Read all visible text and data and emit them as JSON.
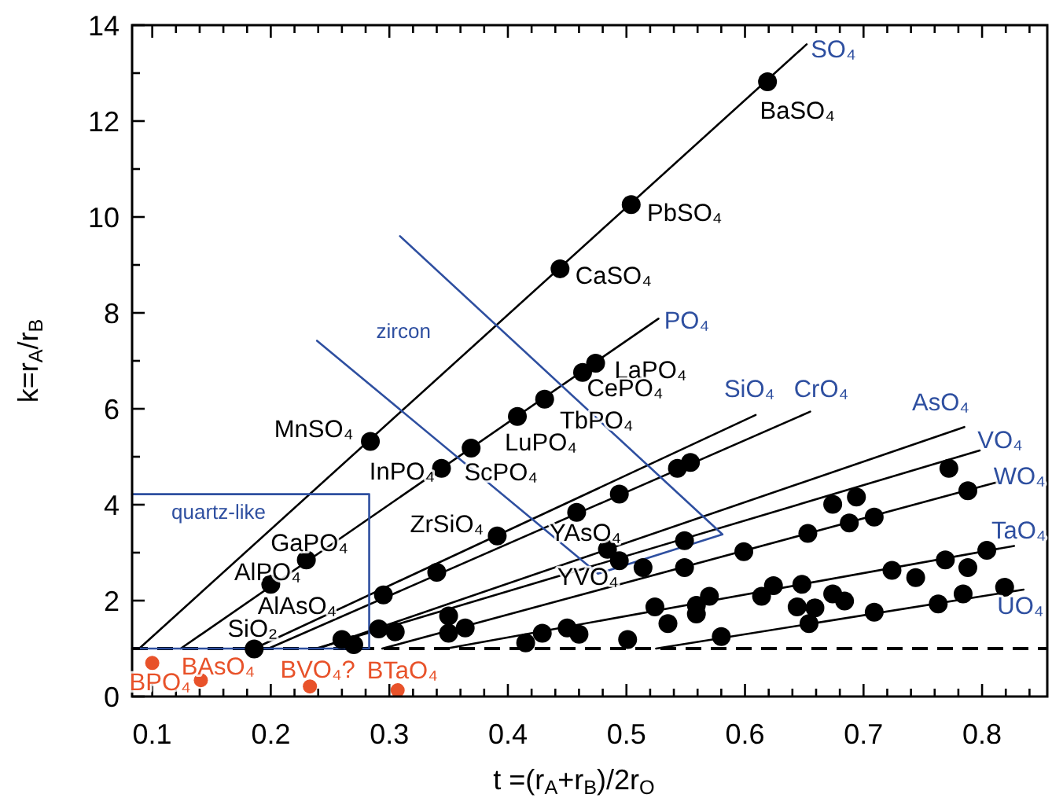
{
  "chart_data": {
    "type": "scatter",
    "xlabel": "t =(r$_{A}$+r$_{B}$)/2r$_{O}$",
    "ylabel": "k=r$_{A}$/r$_{B}$",
    "xlim": [
      0.083,
      0.855
    ],
    "ylim": [
      0,
      14
    ],
    "xticks": [
      0.1,
      {
        "value": 0.12,
        "label": null
      },
      {
        "value": 0.14,
        "label": null
      },
      {
        "value": 0.16,
        "label": null
      },
      {
        "value": 0.18,
        "label": null
      },
      0.2,
      {
        "value": 0.22,
        "label": null
      },
      {
        "value": 0.24,
        "label": null
      },
      {
        "value": 0.26,
        "label": null
      },
      {
        "value": 0.28,
        "label": null
      },
      0.3,
      {
        "value": 0.32,
        "label": null
      },
      {
        "value": 0.34,
        "label": null
      },
      {
        "value": 0.36,
        "label": null
      },
      {
        "value": 0.38,
        "label": null
      },
      0.4,
      {
        "value": 0.42,
        "label": null
      },
      {
        "value": 0.44,
        "label": null
      },
      {
        "value": 0.46,
        "label": null
      },
      {
        "value": 0.48,
        "label": null
      },
      0.5,
      {
        "value": 0.52,
        "label": null
      },
      {
        "value": 0.54,
        "label": null
      },
      {
        "value": 0.56,
        "label": null
      },
      {
        "value": 0.58,
        "label": null
      },
      0.6,
      {
        "value": 0.62,
        "label": null
      },
      {
        "value": 0.64,
        "label": null
      },
      {
        "value": 0.66,
        "label": null
      },
      {
        "value": 0.68,
        "label": null
      },
      0.7,
      {
        "value": 0.72,
        "label": null
      },
      {
        "value": 0.74,
        "label": null
      },
      {
        "value": 0.76,
        "label": null
      },
      {
        "value": 0.78,
        "label": null
      },
      0.8,
      {
        "value": 0.82,
        "label": null
      },
      {
        "value": 0.84,
        "label": null
      }
    ],
    "yticks": [
      0,
      {
        "value": 1,
        "label": null
      },
      2,
      {
        "value": 3,
        "label": null
      },
      4,
      {
        "value": 5,
        "label": null
      },
      6,
      {
        "value": 7,
        "label": null
      },
      8,
      {
        "value": 9,
        "label": null
      },
      10,
      {
        "value": 11,
        "label": null
      },
      12,
      {
        "value": 13,
        "label": null
      },
      14
    ],
    "grid": false,
    "marker": "circle",
    "ref_lines": [
      {
        "axis": "y",
        "value": 1,
        "color": "#000000",
        "line_style": "dashed"
      }
    ],
    "series": [
      {
        "type": "line",
        "marker": "none",
        "color": "#000000",
        "x": [
          0.089,
          0.652
        ],
        "values": [
          1,
          13.6
        ]
      },
      {
        "type": "line",
        "marker": "none",
        "color": "#000000",
        "x": [
          0.124,
          0.527
        ],
        "values": [
          1,
          7.88
        ]
      },
      {
        "type": "line",
        "marker": "none",
        "color": "#000000",
        "x": [
          0.186,
          0.609
        ],
        "values": [
          1,
          5.87
        ]
      },
      {
        "type": "line",
        "marker": "none",
        "color": "#000000",
        "x": [
          0.198,
          0.655
        ],
        "values": [
          1,
          5.94
        ]
      },
      {
        "type": "line",
        "marker": "none",
        "color": "#000000",
        "x": [
          0.24,
          0.785
        ],
        "values": [
          1,
          5.62
        ]
      },
      {
        "type": "line",
        "marker": "none",
        "color": "#000000",
        "x": [
          0.238,
          0.798
        ],
        "values": [
          1,
          5.13
        ]
      },
      {
        "type": "line",
        "marker": "none",
        "color": "#000000",
        "x": [
          0.294,
          0.813
        ],
        "values": [
          1,
          4.47
        ]
      },
      {
        "type": "line",
        "marker": "none",
        "color": "#000000",
        "x": [
          0.348,
          0.827
        ],
        "values": [
          1,
          3.14
        ]
      },
      {
        "type": "line",
        "marker": "none",
        "color": "#000000",
        "x": [
          0.525,
          0.835
        ],
        "values": [
          1,
          2.23
        ]
      },
      {
        "type": "line",
        "marker": "none",
        "color": "#2e4fa0",
        "x": [
          0.083,
          0.283,
          0.283,
          0.083
        ],
        "values": [
          4.22,
          4.22,
          1,
          1
        ]
      },
      {
        "type": "line",
        "marker": "none",
        "color": "#2e4fa0",
        "x": [
          0.239,
          0.476,
          0.581,
          0.309
        ],
        "values": [
          7.42,
          2.56,
          3.38,
          9.6
        ]
      },
      {
        "color": "#000000",
        "x": [
          0.284,
          0.444,
          0.504,
          0.619,
          0.2,
          0.23,
          0.344,
          0.369,
          0.408,
          0.431,
          0.463,
          0.474,
          0.186,
          0.26,
          0.27,
          0.291,
          0.305,
          0.295,
          0.34,
          0.35,
          0.35,
          0.364,
          0.391,
          0.415,
          0.429,
          0.45,
          0.46,
          0.458,
          0.484,
          0.494,
          0.494,
          0.514,
          0.501,
          0.524,
          0.535,
          0.543,
          0.554,
          0.549,
          0.549,
          0.559,
          0.559,
          0.57,
          0.58,
          0.599,
          0.614,
          0.624,
          0.644,
          0.648,
          0.653,
          0.659,
          0.654,
          0.674,
          0.674,
          0.684,
          0.688,
          0.694,
          0.709,
          0.709,
          0.724,
          0.744,
          0.763,
          0.769,
          0.772,
          0.784,
          0.788,
          0.788,
          0.804,
          0.819
        ],
        "values": [
          5.32,
          8.92,
          10.26,
          12.82,
          2.34,
          2.85,
          4.76,
          5.18,
          5.84,
          6.2,
          6.76,
          6.95,
          0.99,
          1.19,
          1.08,
          1.41,
          1.35,
          2.12,
          2.59,
          1.68,
          1.32,
          1.43,
          3.35,
          1.12,
          1.32,
          1.43,
          1.3,
          3.84,
          3.07,
          4.22,
          2.83,
          2.69,
          1.19,
          1.87,
          1.52,
          4.76,
          4.88,
          3.25,
          2.69,
          1.9,
          1.72,
          2.09,
          1.25,
          3.02,
          2.09,
          2.31,
          1.87,
          2.34,
          3.4,
          1.85,
          1.52,
          4.01,
          2.14,
          1.99,
          3.62,
          4.16,
          3.74,
          1.76,
          2.63,
          2.48,
          1.93,
          2.85,
          4.76,
          2.14,
          2.69,
          4.29,
          3.05,
          2.28
        ]
      },
      {
        "color": "#e8522a",
        "x": [
          0.1,
          0.141,
          0.233,
          0.307
        ],
        "values": [
          0.7,
          0.34,
          0.21,
          0.13
        ]
      }
    ],
    "annotations": [
      {
        "text": "SO₄",
        "x": 0.652,
        "y": 13.6
      },
      {
        "text": "PO₄",
        "x": 0.527,
        "y": 7.88
      },
      {
        "text": "SiO₄",
        "x": 0.609,
        "y": 5.87
      },
      {
        "text": "CrO₄",
        "x": 0.655,
        "y": 5.94
      },
      {
        "text": "AsO₄",
        "x": 0.785,
        "y": 5.62
      },
      {
        "text": "VO₄",
        "x": 0.798,
        "y": 5.13
      },
      {
        "text": "WO₄",
        "x": 0.813,
        "y": 4.47
      },
      {
        "text": "TaO₄",
        "x": 0.827,
        "y": 3.14
      },
      {
        "text": "UO₄",
        "x": 0.835,
        "y": 2.23
      },
      {
        "text": "BaSO₄",
        "x": 0.619,
        "y": 12.82
      },
      {
        "text": "PbSO₄",
        "x": 0.504,
        "y": 10.26
      },
      {
        "text": "CaSO₄",
        "x": 0.444,
        "y": 8.92
      },
      {
        "text": "LaPO₄",
        "x": 0.474,
        "y": 6.95
      },
      {
        "text": "CePO₄",
        "x": 0.463,
        "y": 6.76
      },
      {
        "text": "TbPO₄",
        "x": 0.431,
        "y": 6.2
      },
      {
        "text": "LuPO₄",
        "x": 0.408,
        "y": 5.84
      },
      {
        "text": "MnSO₄",
        "x": 0.284,
        "y": 5.32
      },
      {
        "text": "InPO₄",
        "x": 0.344,
        "y": 4.76
      },
      {
        "text": "ScPO₄",
        "x": 0.369,
        "y": 5.18
      },
      {
        "text": "ZrSiO₄",
        "x": 0.391,
        "y": 3.35
      },
      {
        "text": "GaPO₄",
        "x": 0.23,
        "y": 2.85
      },
      {
        "text": "AlPO₄",
        "x": 0.2,
        "y": 2.34
      },
      {
        "text": "YAsO₄",
        "x": 0.484,
        "y": 3.07
      },
      {
        "text": "YVO₄",
        "x": 0.494,
        "y": 2.83
      },
      {
        "text": "SiO₂",
        "x": 0.186,
        "y": 0.99
      },
      {
        "text": "AlAsO₄",
        "x": 0.27,
        "y": 1.08
      },
      "quartz-like",
      "zircon",
      {
        "text": "BPO₄",
        "x": 0.1,
        "y": 0.7
      },
      {
        "text": "BAsO₄",
        "x": 0.141,
        "y": 0.34
      },
      {
        "text": "BVO₄?",
        "x": 0.233,
        "y": 0.21
      },
      {
        "text": "BTaO₄",
        "x": 0.307,
        "y": 0.13
      }
    ]
  }
}
